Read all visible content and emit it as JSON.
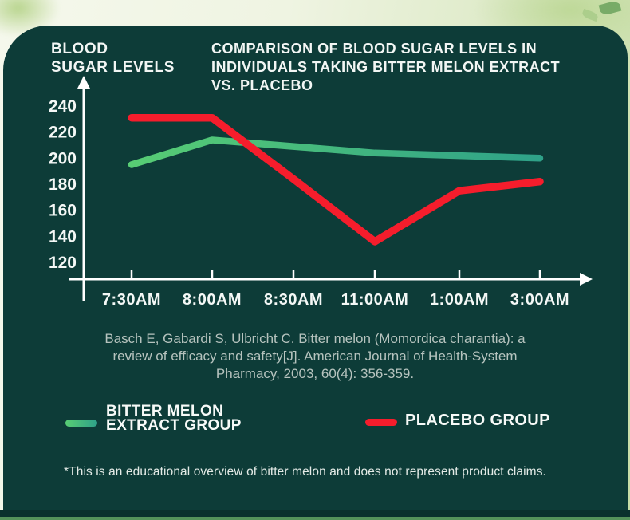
{
  "header": {
    "y_axis_block_title": "BLOOD\nSUGAR LEVELS",
    "main_title_lines": [
      "COMPARISON OF BLOOD SUGAR LEVELS IN",
      "INDIVIDUALS TAKING BITTER MELON EXTRACT",
      "VS. PLACEBO"
    ]
  },
  "chart_data": {
    "type": "line",
    "title": "COMPARISON OF BLOOD SUGAR LEVELS IN INDIVIDUALS TAKING BITTER MELON EXTRACT VS. PLACEBO",
    "ylabel": "BLOOD SUGAR LEVELS",
    "xlabel": "",
    "categories": [
      "7:30AM",
      "8:00AM",
      "8:30AM",
      "11:00AM",
      "1:00AM",
      "3:00AM"
    ],
    "yticks": [
      240,
      220,
      200,
      180,
      160,
      140,
      120
    ],
    "ylim": [
      110,
      252
    ],
    "grid": false,
    "legend_position": "bottom",
    "series": [
      {
        "name": "BITTER MELON EXTRACT GROUP",
        "values": [
          195,
          214,
          209,
          204,
          202,
          200
        ],
        "style": "gradient",
        "color_start": "#58cd74",
        "color_end": "#2ea189"
      },
      {
        "name": "PLACEBO GROUP",
        "values": [
          231,
          231,
          184,
          136,
          175,
          182
        ],
        "style": "solid",
        "color": "#f51d2c"
      }
    ]
  },
  "citation": {
    "line1": "Basch E, Gabardi S, Ulbricht C. Bitter melon (Momordica charantia): a",
    "line2": "review of efficacy and safety[J]. American Journal of Health-System",
    "line3": "Pharmacy, 2003, 60(4): 356-359."
  },
  "legend": {
    "items": [
      {
        "label_line1": "BITTER MELON",
        "label_line2": "EXTRACT GROUP",
        "swatch": "green-gradient"
      },
      {
        "label_line1": "PLACEBO GROUP",
        "label_line2": "",
        "swatch": "red"
      }
    ]
  },
  "disclaimer": "*This is an educational overview of bitter melon and does not represent product claims.",
  "colors": {
    "panel_bg": "#0d3c38",
    "panel_footer_strip": "#0a302d",
    "bottom_bar": "#54915a",
    "axis": "#ffffff",
    "title_text": "#f2f6f4",
    "citation_text": "#b6c3be",
    "red_line": "#f51d2c",
    "green_line_start": "#58cd74",
    "green_line_end": "#2ea189",
    "page_bg_light": "#f5f8ec",
    "page_bg_green": "#c6dda6"
  }
}
